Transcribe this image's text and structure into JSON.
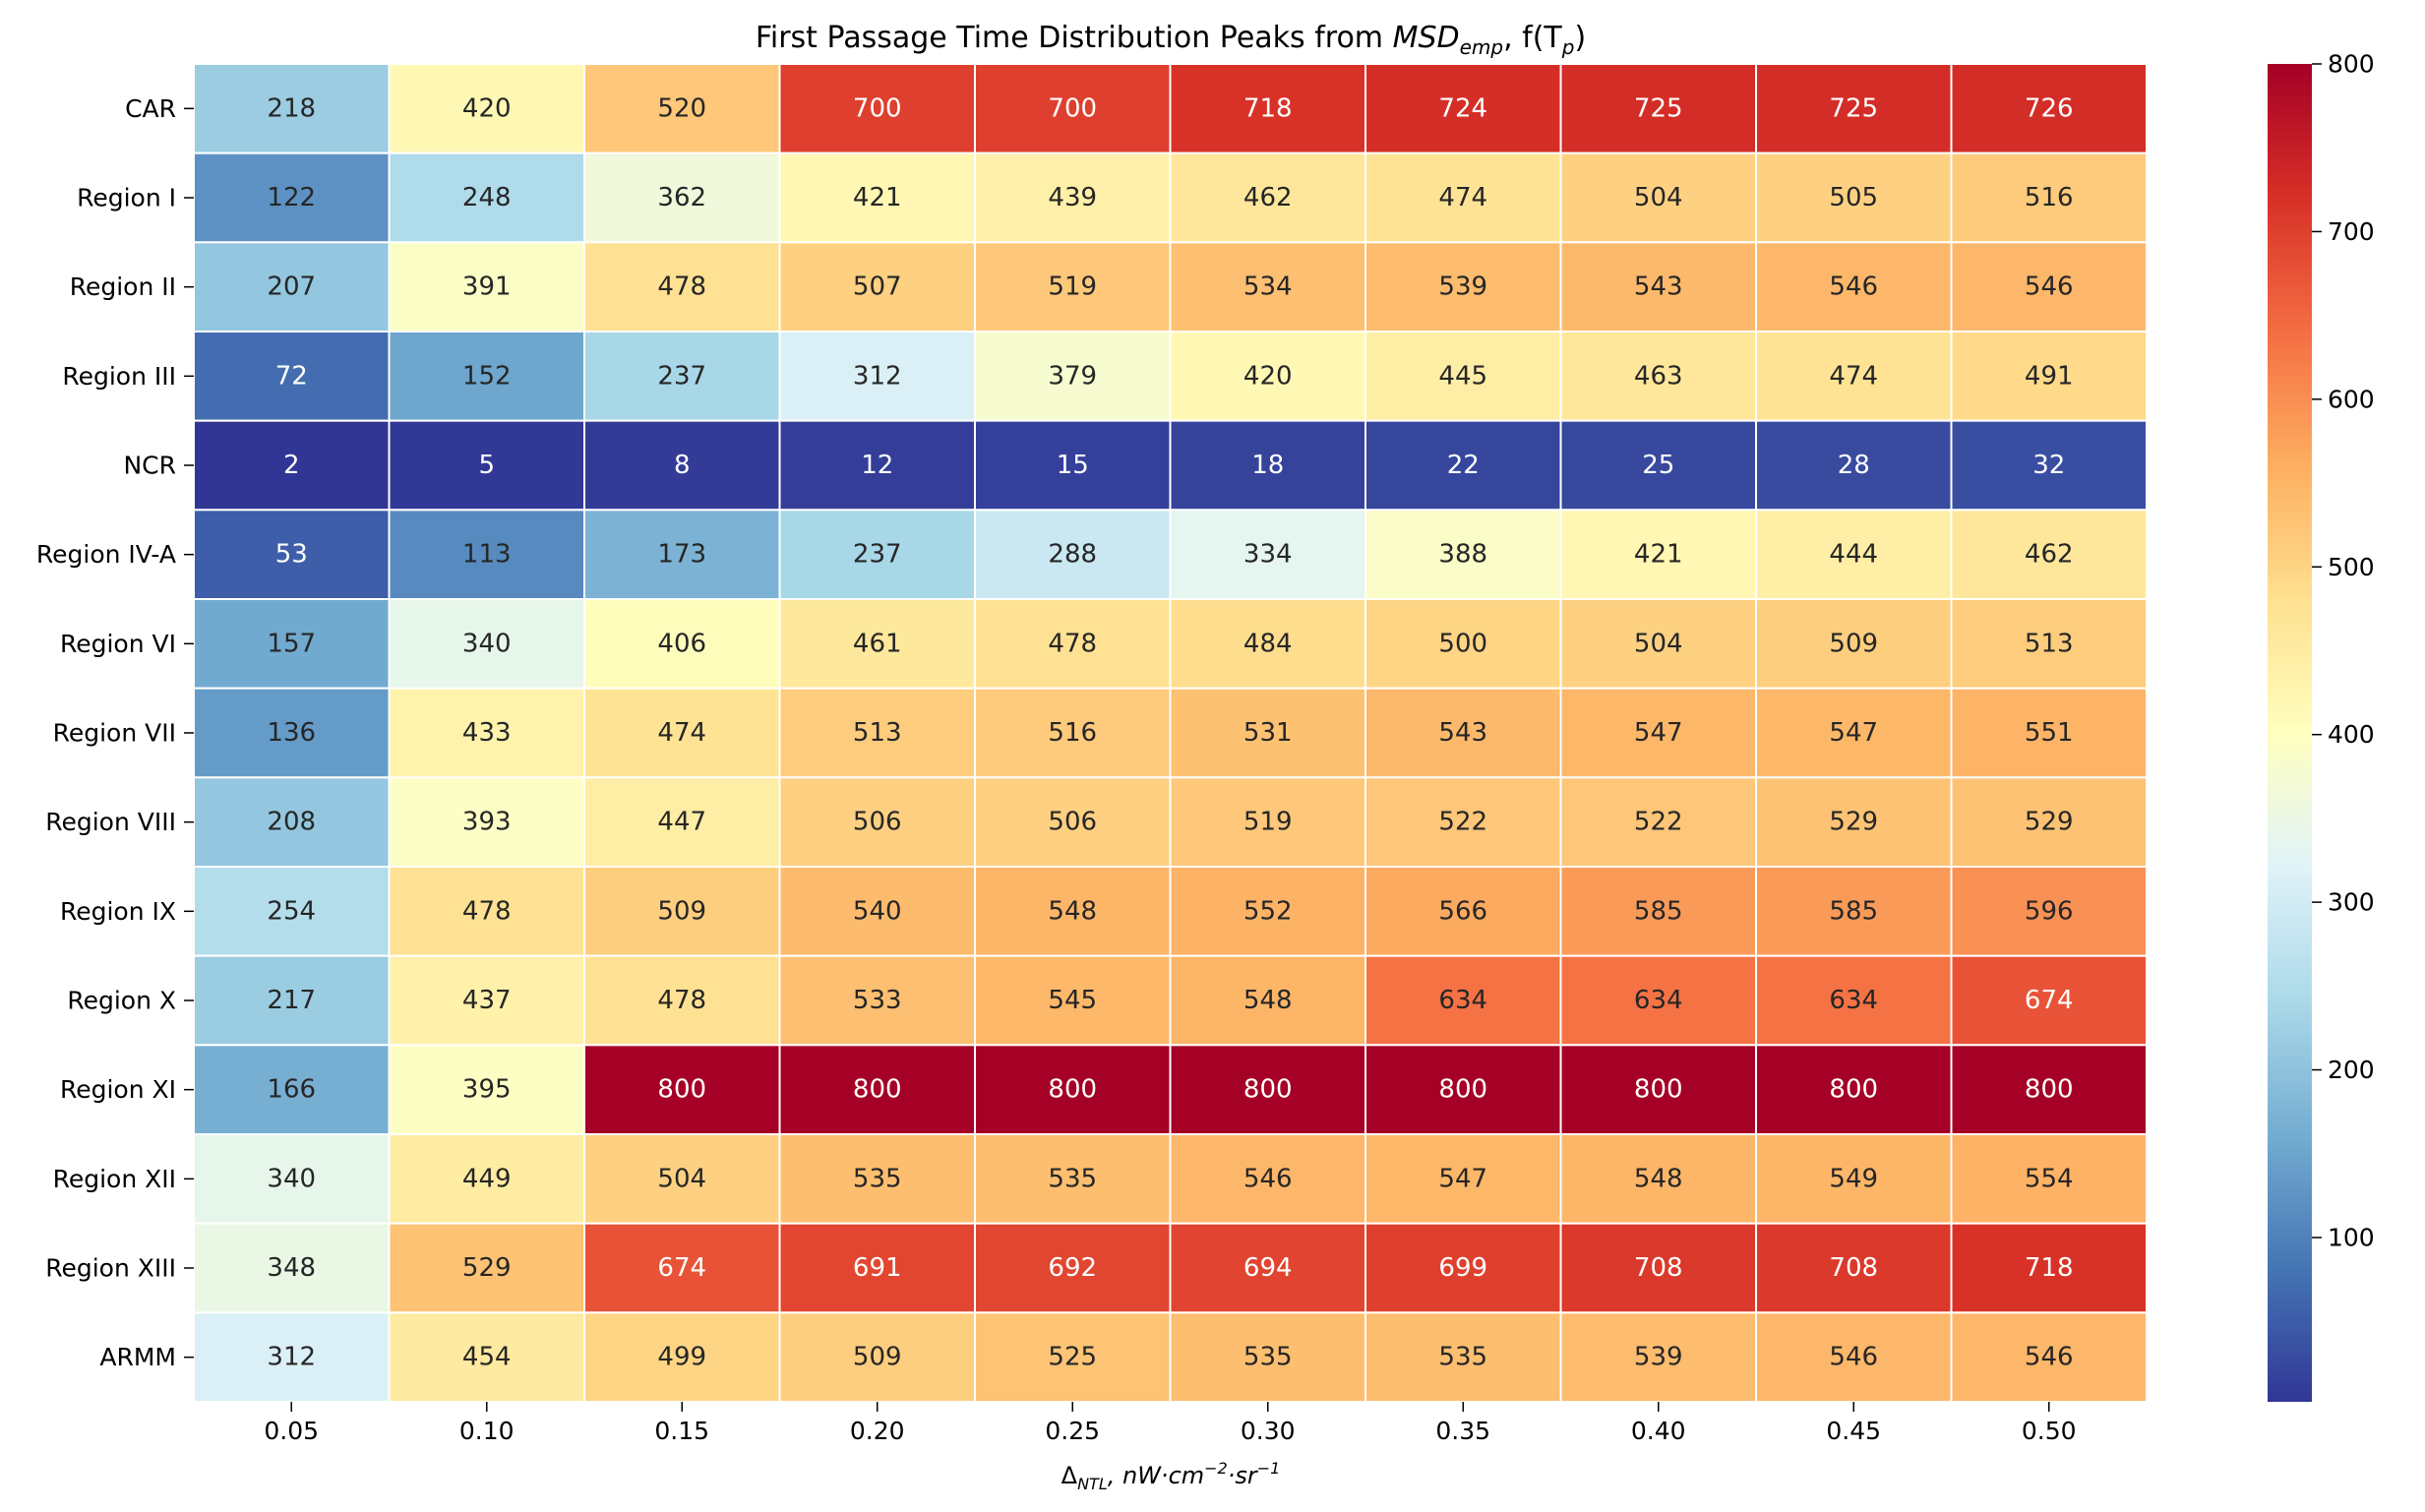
{
  "chart_data": {
    "type": "heatmap",
    "title_prefix": "First Passage Time Distribution Peaks from ",
    "title_math": "MSD",
    "title_math_sub": "emp",
    "title_suffix": ", f(T",
    "title_suffix_sub": "p",
    "title_end": ")",
    "xlabel_sym": "Δ",
    "xlabel_sub": "NTL",
    "xlabel_unit": ", nW·cm",
    "xlabel_exp1": "−2",
    "xlabel_mid": "·sr",
    "xlabel_exp2": "−1",
    "x": [
      "0.05",
      "0.10",
      "0.15",
      "0.20",
      "0.25",
      "0.30",
      "0.35",
      "0.40",
      "0.45",
      "0.50"
    ],
    "y": [
      "CAR",
      "Region I",
      "Region II",
      "Region III",
      "NCR",
      "Region IV-A",
      "Region VI",
      "Region VII",
      "Region VIII",
      "Region IX",
      "Region X",
      "Region XI",
      "Region XII",
      "Region XIII",
      "ARMM"
    ],
    "values": [
      [
        218,
        420,
        520,
        700,
        700,
        718,
        724,
        725,
        725,
        726
      ],
      [
        122,
        248,
        362,
        421,
        439,
        462,
        474,
        504,
        505,
        516
      ],
      [
        207,
        391,
        478,
        507,
        519,
        534,
        539,
        543,
        546,
        546
      ],
      [
        72,
        152,
        237,
        312,
        379,
        420,
        445,
        463,
        474,
        491
      ],
      [
        2,
        5,
        8,
        12,
        15,
        18,
        22,
        25,
        28,
        32
      ],
      [
        53,
        113,
        173,
        237,
        288,
        334,
        388,
        421,
        444,
        462
      ],
      [
        157,
        340,
        406,
        461,
        478,
        484,
        500,
        504,
        509,
        513
      ],
      [
        136,
        433,
        474,
        513,
        516,
        531,
        543,
        547,
        547,
        551
      ],
      [
        208,
        393,
        447,
        506,
        506,
        519,
        522,
        522,
        529,
        529
      ],
      [
        254,
        478,
        509,
        540,
        548,
        552,
        566,
        585,
        585,
        596
      ],
      [
        217,
        437,
        478,
        533,
        545,
        548,
        634,
        634,
        634,
        674
      ],
      [
        166,
        395,
        800,
        800,
        800,
        800,
        800,
        800,
        800,
        800
      ],
      [
        340,
        449,
        504,
        535,
        535,
        546,
        547,
        548,
        549,
        554
      ],
      [
        348,
        529,
        674,
        691,
        692,
        694,
        699,
        708,
        708,
        718
      ],
      [
        312,
        454,
        499,
        509,
        525,
        535,
        535,
        539,
        546,
        546
      ]
    ],
    "colormap": "RdYlBu_r",
    "vmin": 2,
    "vmax": 800,
    "colorbar_ticks": [
      100,
      200,
      300,
      400,
      500,
      600,
      700,
      800
    ]
  }
}
